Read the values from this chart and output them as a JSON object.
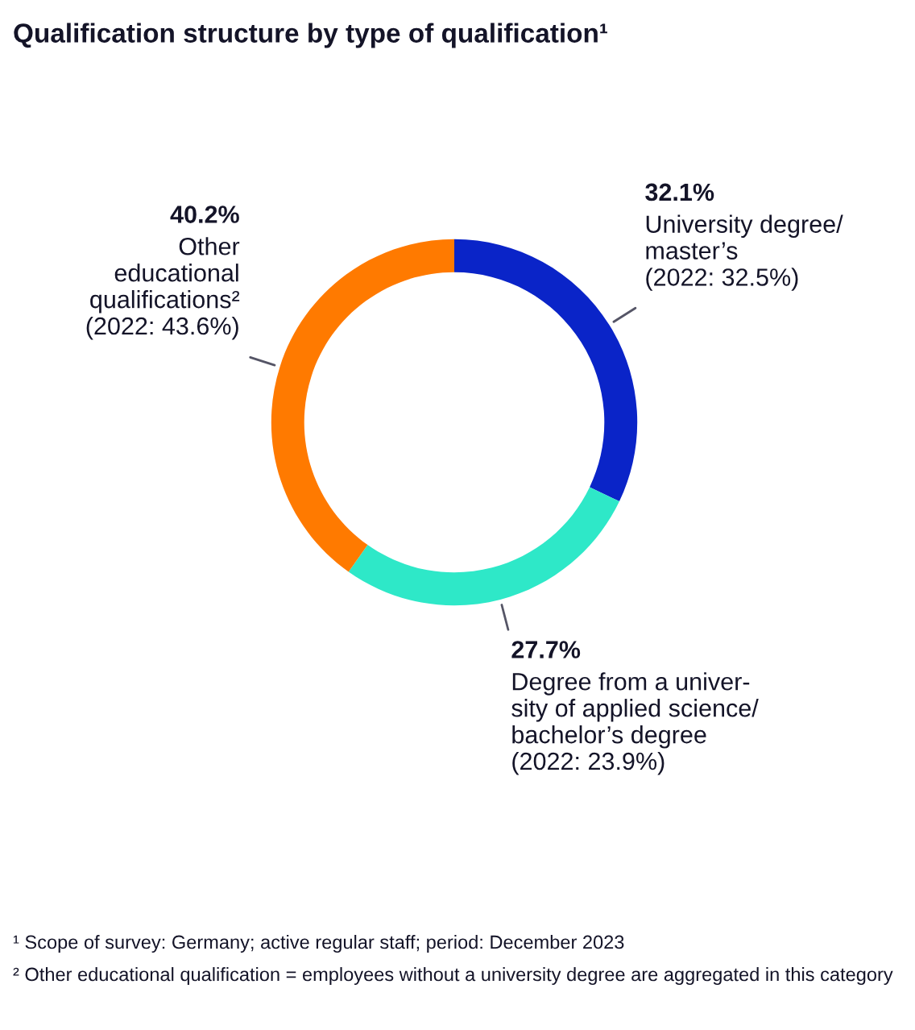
{
  "chart_data": {
    "type": "donut",
    "title": "Qualification structure by type of qualification¹",
    "categories": [
      "University degree/\nmaster’s",
      "Degree from a univer-\nsity of applied science/\nbachelor’s degree",
      "Other\neducational\nqualifications²"
    ],
    "values": [
      32.1,
      27.7,
      40.2
    ],
    "colors": [
      "#0a24c8",
      "#2ee8c8",
      "#ff7a00"
    ],
    "value_labels": [
      "32.1%",
      "27.7%",
      "40.2%"
    ],
    "annotations": [
      "(2022: 32.5%)",
      "(2022: 23.9%)",
      "(2022: 43.6%)",
      "¹ Scope of survey: Germany; active regular staff; period: December 2023",
      "² Other educational qualification = employees without a university degree are aggregated in this category"
    ]
  }
}
